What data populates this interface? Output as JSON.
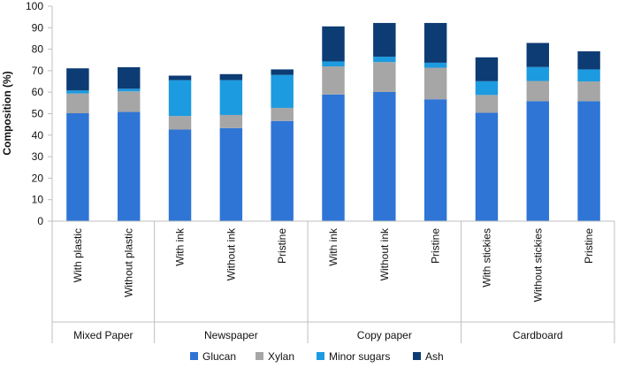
{
  "chart_data": {
    "type": "bar",
    "stacked": true,
    "ylabel": "Composition (%)",
    "ylim": [
      0,
      100
    ],
    "yticks": [
      0,
      10,
      20,
      30,
      40,
      50,
      60,
      70,
      80,
      90,
      100
    ],
    "grid": false,
    "legend_position": "bottom",
    "groups": [
      {
        "label": "Mixed Paper",
        "categories": [
          "With plastic",
          "Without plastic"
        ]
      },
      {
        "label": "Newspaper",
        "categories": [
          "With ink",
          "Without ink",
          "Pristine"
        ]
      },
      {
        "label": "Copy paper",
        "categories": [
          "With ink",
          "Without ink",
          "Pristine"
        ]
      },
      {
        "label": "Cardboard",
        "categories": [
          "With stickies",
          "Without stickies",
          "Pristine"
        ]
      }
    ],
    "series": [
      {
        "name": "Glucan",
        "color": "#2E75D6",
        "values": [
          50.2,
          50.8,
          42.6,
          43.3,
          46.6,
          58.9,
          60.1,
          56.7,
          50.4,
          55.8,
          55.8
        ]
      },
      {
        "name": "Xylan",
        "color": "#A6A6A6",
        "values": [
          9.2,
          9.6,
          6.3,
          6.1,
          6.1,
          13.1,
          13.9,
          14.7,
          8.3,
          9.4,
          9.2
        ]
      },
      {
        "name": "Minor sugars",
        "color": "#1C9BE0",
        "values": [
          1.4,
          1.2,
          16.7,
          16.2,
          15.3,
          2.3,
          2.5,
          2.3,
          6.4,
          6.5,
          5.6
        ]
      },
      {
        "name": "Ash",
        "color": "#0D3C74",
        "values": [
          10.3,
          10.0,
          2.1,
          2.8,
          2.6,
          16.3,
          15.7,
          18.5,
          11.1,
          11.2,
          8.4
        ]
      }
    ]
  }
}
